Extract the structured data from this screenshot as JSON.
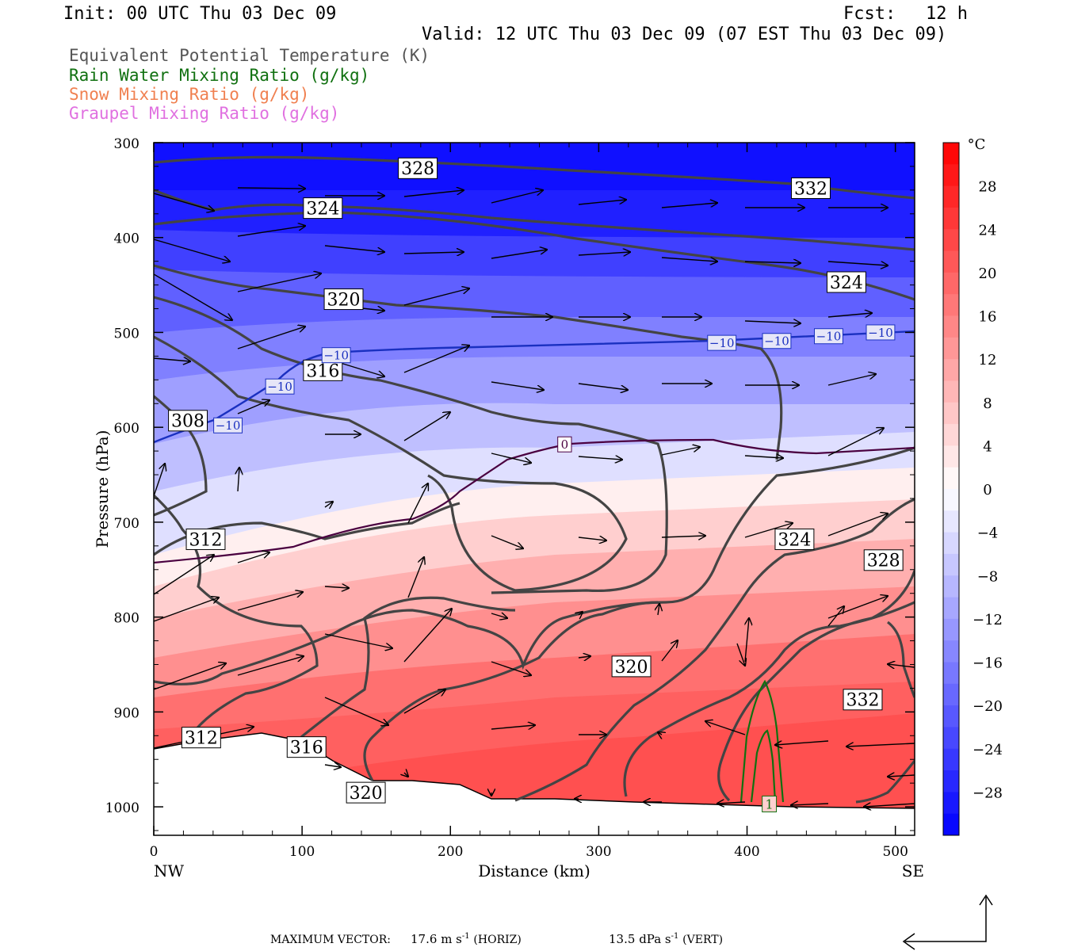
{
  "header": {
    "init": "Init: 00 UTC Thu 03 Dec 09",
    "fcst_label": "Fcst:",
    "fcst_value": "12 h",
    "valid": "Valid: 12 UTC Thu 03 Dec 09 (07 EST Thu 03 Dec 09)"
  },
  "legend": [
    {
      "label": "Equivalent Potential Temperature (K)",
      "color": "#555555"
    },
    {
      "label": "Rain Water Mixing Ratio (g/kg)",
      "color": "#107010"
    },
    {
      "label": "Snow Mixing Ratio (g/kg)",
      "color": "#f08050"
    },
    {
      "label": "Graupel Mixing Ratio (g/kg)",
      "color": "#e070e0"
    }
  ],
  "footer": {
    "max_vector_label": "MAXIMUM VECTOR:",
    "horiz_value": "17.6",
    "horiz_unit": "m s",
    "horiz_exp": "-1",
    "horiz_tag": "(HORIZ)",
    "vert_value": "13.5",
    "vert_unit": "dPa s",
    "vert_exp": "-1",
    "vert_tag": "(VERT)"
  },
  "chart_data": {
    "type": "cross-section",
    "xlabel": "Distance (km)",
    "ylabel": "Pressure (hPa)",
    "x_ticks": [
      0,
      100,
      200,
      300,
      400,
      500
    ],
    "y_ticks": [
      300,
      400,
      500,
      600,
      700,
      800,
      900,
      1000
    ],
    "xlim": [
      0,
      513
    ],
    "ylim": [
      1030,
      300
    ],
    "left_end_label": "NW",
    "right_end_label": "SE",
    "colorbar": {
      "unit": "°C",
      "tick_labels": [
        "28",
        "24",
        "20",
        "16",
        "12",
        "8",
        "4",
        "0",
        "−4",
        "−8",
        "−12",
        "−16",
        "−20",
        "−24",
        "−28"
      ],
      "tick_values": [
        28,
        24,
        20,
        16,
        12,
        8,
        4,
        0,
        -4,
        -8,
        -12,
        -16,
        -20,
        -24,
        -28
      ],
      "range": [
        -32,
        32
      ],
      "cold_color": "#0000ff",
      "warm_color": "#ff0000"
    },
    "theta_e_labels": [
      {
        "text": "328",
        "x": 178,
        "p": 327
      },
      {
        "text": "332",
        "x": 443,
        "p": 348
      },
      {
        "text": "324",
        "x": 114,
        "p": 369
      },
      {
        "text": "324",
        "x": 467,
        "p": 447
      },
      {
        "text": "320",
        "x": 128,
        "p": 465
      },
      {
        "text": "316",
        "x": 114,
        "p": 540
      },
      {
        "text": "308",
        "x": 23,
        "p": 593
      },
      {
        "text": "312",
        "x": 35,
        "p": 718
      },
      {
        "text": "324",
        "x": 432,
        "p": 718
      },
      {
        "text": "328",
        "x": 492,
        "p": 740
      },
      {
        "text": "320",
        "x": 322,
        "p": 852
      },
      {
        "text": "332",
        "x": 478,
        "p": 887
      },
      {
        "text": "312",
        "x": 32,
        "p": 927
      },
      {
        "text": "316",
        "x": 103,
        "p": 937
      },
      {
        "text": "320",
        "x": 143,
        "p": 985
      }
    ],
    "temp_labels": [
      {
        "text": "−10",
        "x": 123,
        "p": 524,
        "color": "#1a30c0"
      },
      {
        "text": "−10",
        "x": 85,
        "p": 557,
        "color": "#1a30c0"
      },
      {
        "text": "−10",
        "x": 50,
        "p": 598,
        "color": "#1a30c0"
      },
      {
        "text": "−10",
        "x": 383,
        "p": 511,
        "color": "#1a30c0"
      },
      {
        "text": "−10",
        "x": 420,
        "p": 509,
        "color": "#1a30c0"
      },
      {
        "text": "−10",
        "x": 455,
        "p": 504,
        "color": "#1a30c0"
      },
      {
        "text": "−10",
        "x": 490,
        "p": 500,
        "color": "#1a30c0"
      },
      {
        "text": "0",
        "x": 277,
        "p": 618,
        "color": "#4a0040"
      }
    ],
    "rain_label": {
      "text": "1",
      "x": 415,
      "p": 997,
      "color": "#107010"
    }
  }
}
